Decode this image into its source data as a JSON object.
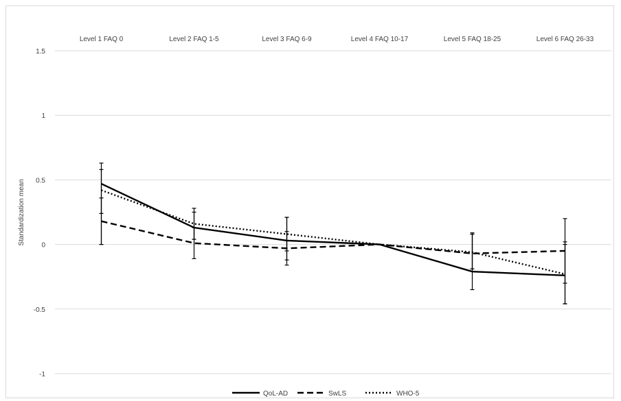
{
  "chart_data": {
    "type": "line",
    "categories": [
      "Level 1 FAQ 0",
      "Level 2 FAQ 1-5",
      "Level 3 FAQ 6-9",
      "Level 4 FAQ 10-17",
      "Level 5 FAQ 18-25",
      "Level 6 FAQ 26-33"
    ],
    "ylabel": "Standardization mean",
    "ylim": [
      -1,
      1.5
    ],
    "yticks": [
      1.5,
      1,
      0.5,
      0,
      -0.5,
      -1
    ],
    "ytick_labels": [
      "1.5",
      "1",
      "0.5",
      "0",
      "-0.5",
      "-1"
    ],
    "grid": true,
    "legend_position": "bottom",
    "series": [
      {
        "name": "QoL-AD",
        "style": "solid",
        "values": [
          0.47,
          0.13,
          0.03,
          0.0,
          -0.21,
          -0.24
        ],
        "error_low": [
          0.0,
          0.04,
          -0.12,
          null,
          -0.35,
          -0.46
        ],
        "error_high": [
          0.63,
          0.25,
          0.21,
          null,
          0.08,
          0.0
        ]
      },
      {
        "name": "SwLS",
        "style": "dashed",
        "values": [
          0.18,
          0.01,
          -0.03,
          0.0,
          -0.07,
          -0.05
        ],
        "error_low": [
          0.0,
          -0.11,
          -0.16,
          null,
          -0.19,
          -0.3
        ],
        "error_high": [
          0.36,
          0.13,
          0.1,
          null,
          0.08,
          0.2
        ]
      },
      {
        "name": "WHO-5",
        "style": "dotted",
        "values": [
          0.42,
          0.16,
          0.08,
          0.0,
          -0.06,
          -0.23
        ],
        "error_low": [
          0.24,
          0.04,
          -0.05,
          null,
          -0.19,
          -0.46
        ],
        "error_high": [
          0.58,
          0.28,
          0.21,
          null,
          0.09,
          0.02
        ]
      }
    ]
  }
}
